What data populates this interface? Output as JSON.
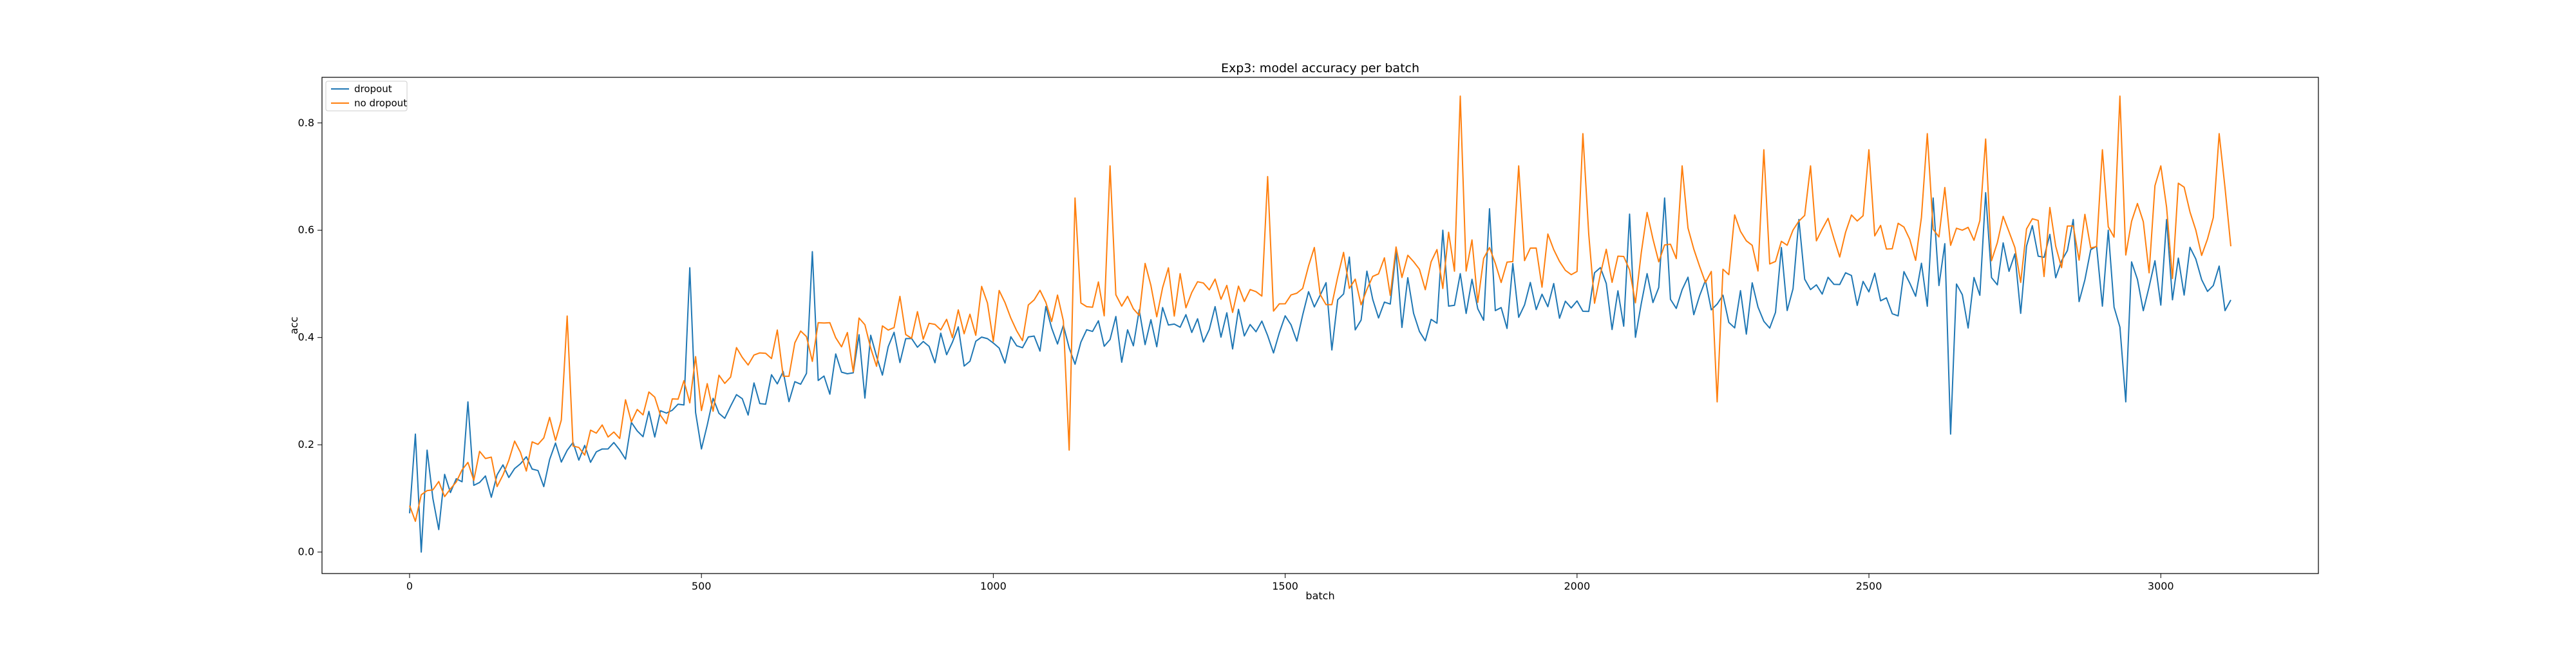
{
  "chart_data": {
    "type": "line",
    "title": "Exp3: model accuracy per batch",
    "xlabel": "batch",
    "ylabel": "acc",
    "xlim": [
      -150,
      3270
    ],
    "ylim": [
      -0.04,
      0.885
    ],
    "xticks": [
      0,
      500,
      1000,
      1500,
      2000,
      2500,
      3000
    ],
    "xtick_labels": [
      "0",
      "500",
      "1000",
      "1500",
      "2000",
      "2500",
      "3000"
    ],
    "yticks": [
      0.0,
      0.2,
      0.4,
      0.6,
      0.8
    ],
    "ytick_labels": [
      "0.0",
      "0.2",
      "0.4",
      "0.6",
      "0.8"
    ],
    "grid": false,
    "legend_position": "upper-left",
    "x_start": 0,
    "x_step": 10,
    "series": [
      {
        "name": "dropout",
        "color": "#1f77b4",
        "anchors": [
          [
            0,
            0.06
          ],
          [
            50,
            0.09
          ],
          [
            100,
            0.13
          ],
          [
            200,
            0.16
          ],
          [
            300,
            0.18
          ],
          [
            400,
            0.22
          ],
          [
            500,
            0.26
          ],
          [
            600,
            0.3
          ],
          [
            700,
            0.33
          ],
          [
            800,
            0.36
          ],
          [
            900,
            0.38
          ],
          [
            1000,
            0.39
          ],
          [
            1200,
            0.41
          ],
          [
            1400,
            0.43
          ],
          [
            1600,
            0.44
          ],
          [
            1800,
            0.46
          ],
          [
            2000,
            0.47
          ],
          [
            2200,
            0.48
          ],
          [
            2400,
            0.49
          ],
          [
            2600,
            0.5
          ],
          [
            2800,
            0.51
          ],
          [
            3000,
            0.51
          ],
          [
            3120,
            0.51
          ]
        ],
        "amplitude": [
          0.07,
          0.13
        ],
        "seed": 7,
        "spikes": [
          [
            10,
            0.22
          ],
          [
            20,
            0.0
          ],
          [
            30,
            0.19
          ],
          [
            100,
            0.28
          ],
          [
            480,
            0.53
          ],
          [
            690,
            0.56
          ],
          [
            1610,
            0.55
          ],
          [
            1690,
            0.56
          ],
          [
            1770,
            0.6
          ],
          [
            1850,
            0.64
          ],
          [
            2090,
            0.63
          ],
          [
            2150,
            0.66
          ],
          [
            2380,
            0.62
          ],
          [
            2610,
            0.66
          ],
          [
            2640,
            0.22
          ],
          [
            2700,
            0.67
          ],
          [
            2850,
            0.62
          ],
          [
            2910,
            0.6
          ],
          [
            2940,
            0.28
          ],
          [
            3010,
            0.62
          ],
          [
            3120,
            0.47
          ]
        ]
      },
      {
        "name": "no dropout",
        "color": "#ff7f0e",
        "anchors": [
          [
            0,
            0.09
          ],
          [
            50,
            0.12
          ],
          [
            100,
            0.15
          ],
          [
            200,
            0.18
          ],
          [
            300,
            0.22
          ],
          [
            400,
            0.26
          ],
          [
            500,
            0.31
          ],
          [
            600,
            0.36
          ],
          [
            700,
            0.39
          ],
          [
            800,
            0.41
          ],
          [
            900,
            0.43
          ],
          [
            1000,
            0.44
          ],
          [
            1200,
            0.47
          ],
          [
            1400,
            0.49
          ],
          [
            1600,
            0.51
          ],
          [
            1800,
            0.53
          ],
          [
            2000,
            0.55
          ],
          [
            2200,
            0.56
          ],
          [
            2400,
            0.57
          ],
          [
            2600,
            0.58
          ],
          [
            2800,
            0.59
          ],
          [
            3000,
            0.6
          ],
          [
            3120,
            0.61
          ]
        ],
        "amplitude": [
          0.06,
          0.13
        ],
        "seed": 13,
        "spikes": [
          [
            270,
            0.44
          ],
          [
            1130,
            0.19
          ],
          [
            1140,
            0.66
          ],
          [
            1200,
            0.72
          ],
          [
            1470,
            0.7
          ],
          [
            1800,
            0.85
          ],
          [
            1900,
            0.72
          ],
          [
            2010,
            0.78
          ],
          [
            2180,
            0.72
          ],
          [
            2240,
            0.28
          ],
          [
            2320,
            0.75
          ],
          [
            2400,
            0.72
          ],
          [
            2500,
            0.75
          ],
          [
            2600,
            0.78
          ],
          [
            2700,
            0.77
          ],
          [
            2900,
            0.75
          ],
          [
            2930,
            0.85
          ],
          [
            3000,
            0.72
          ],
          [
            3100,
            0.78
          ],
          [
            3120,
            0.57
          ]
        ]
      }
    ]
  }
}
